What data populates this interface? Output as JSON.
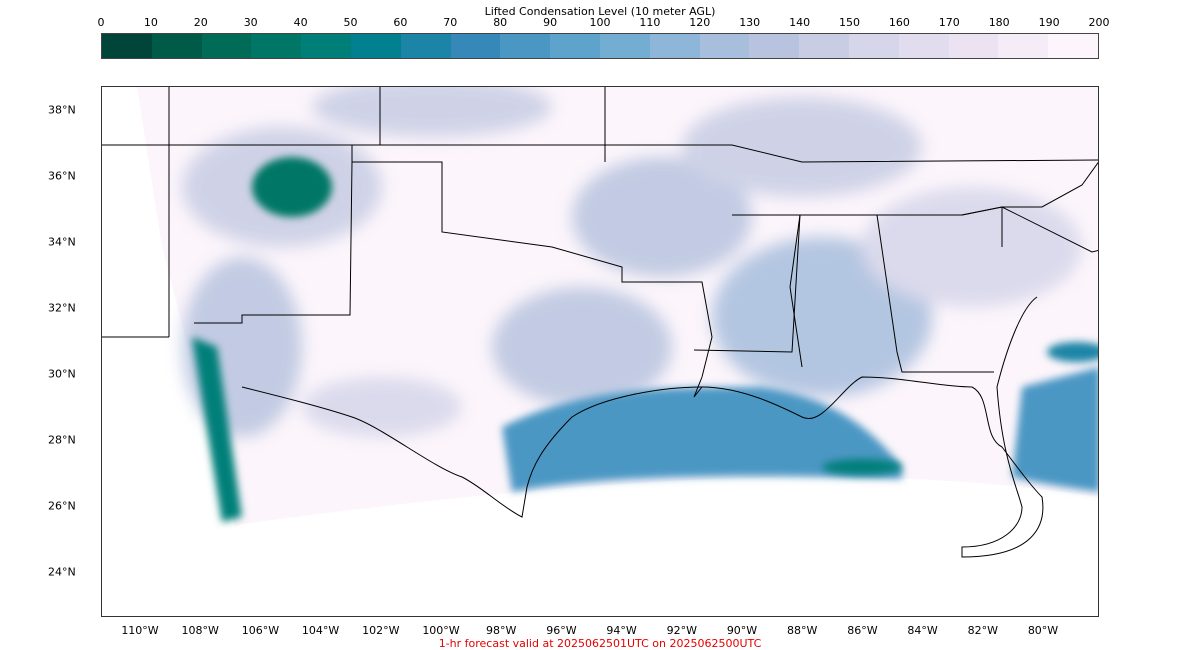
{
  "colorbar": {
    "title": "Lifted Condensation Level (10 meter AGL)",
    "ticks": [
      "0",
      "10",
      "20",
      "30",
      "40",
      "50",
      "60",
      "70",
      "80",
      "90",
      "100",
      "110",
      "120",
      "130",
      "140",
      "150",
      "160",
      "170",
      "180",
      "190",
      "200"
    ],
    "colors": [
      "#00443a",
      "#005a48",
      "#006b56",
      "#007766",
      "#007f79",
      "#01818f",
      "#1c84a6",
      "#3688b8",
      "#4b97c4",
      "#5ea3cb",
      "#74add2",
      "#8eb6d8",
      "#a7bedd",
      "#b8c4df",
      "#c8cde4",
      "#d6d6ea",
      "#e1ddee",
      "#ebe3f1",
      "#f4ecf7",
      "#fcf5fb"
    ]
  },
  "map": {
    "lat_labels": [
      "38°N",
      "36°N",
      "34°N",
      "32°N",
      "30°N",
      "28°N",
      "26°N",
      "24°N"
    ],
    "lon_labels": [
      "110°W",
      "108°W",
      "106°W",
      "104°W",
      "102°W",
      "100°W",
      "98°W",
      "96°W",
      "94°W",
      "92°W",
      "90°W",
      "88°W",
      "86°W",
      "84°W",
      "82°W",
      "80°W"
    ]
  },
  "footer": "1-hr forecast valid at 2025062501UTC on 2025062500UTC"
}
